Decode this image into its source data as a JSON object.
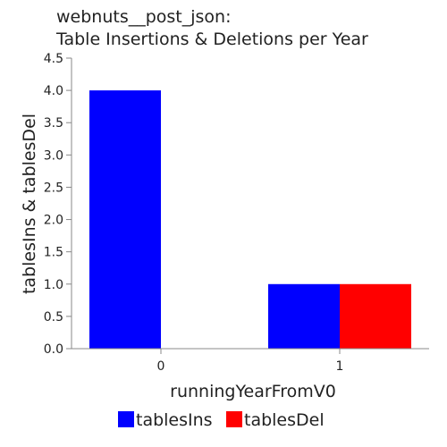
{
  "chart_data": {
    "type": "bar",
    "title": [
      "webnuts__post_json:",
      "Table Insertions & Deletions per Year"
    ],
    "xlabel": "runningYearFromV0",
    "ylabel": "tablesIns & tablesDel",
    "categories": [
      "0",
      "1"
    ],
    "series": [
      {
        "name": "tablesIns",
        "values": [
          4,
          1
        ],
        "color": "#0000ff"
      },
      {
        "name": "tablesDel",
        "values": [
          0,
          1
        ],
        "color": "#ff0000"
      }
    ],
    "ylim": [
      0,
      4.5
    ],
    "yticks": [
      "0.0",
      "0.5",
      "1.0",
      "1.5",
      "2.0",
      "2.5",
      "3.0",
      "3.5",
      "4.0",
      "4.5"
    ],
    "grid": false,
    "legend_position": "bottom"
  }
}
